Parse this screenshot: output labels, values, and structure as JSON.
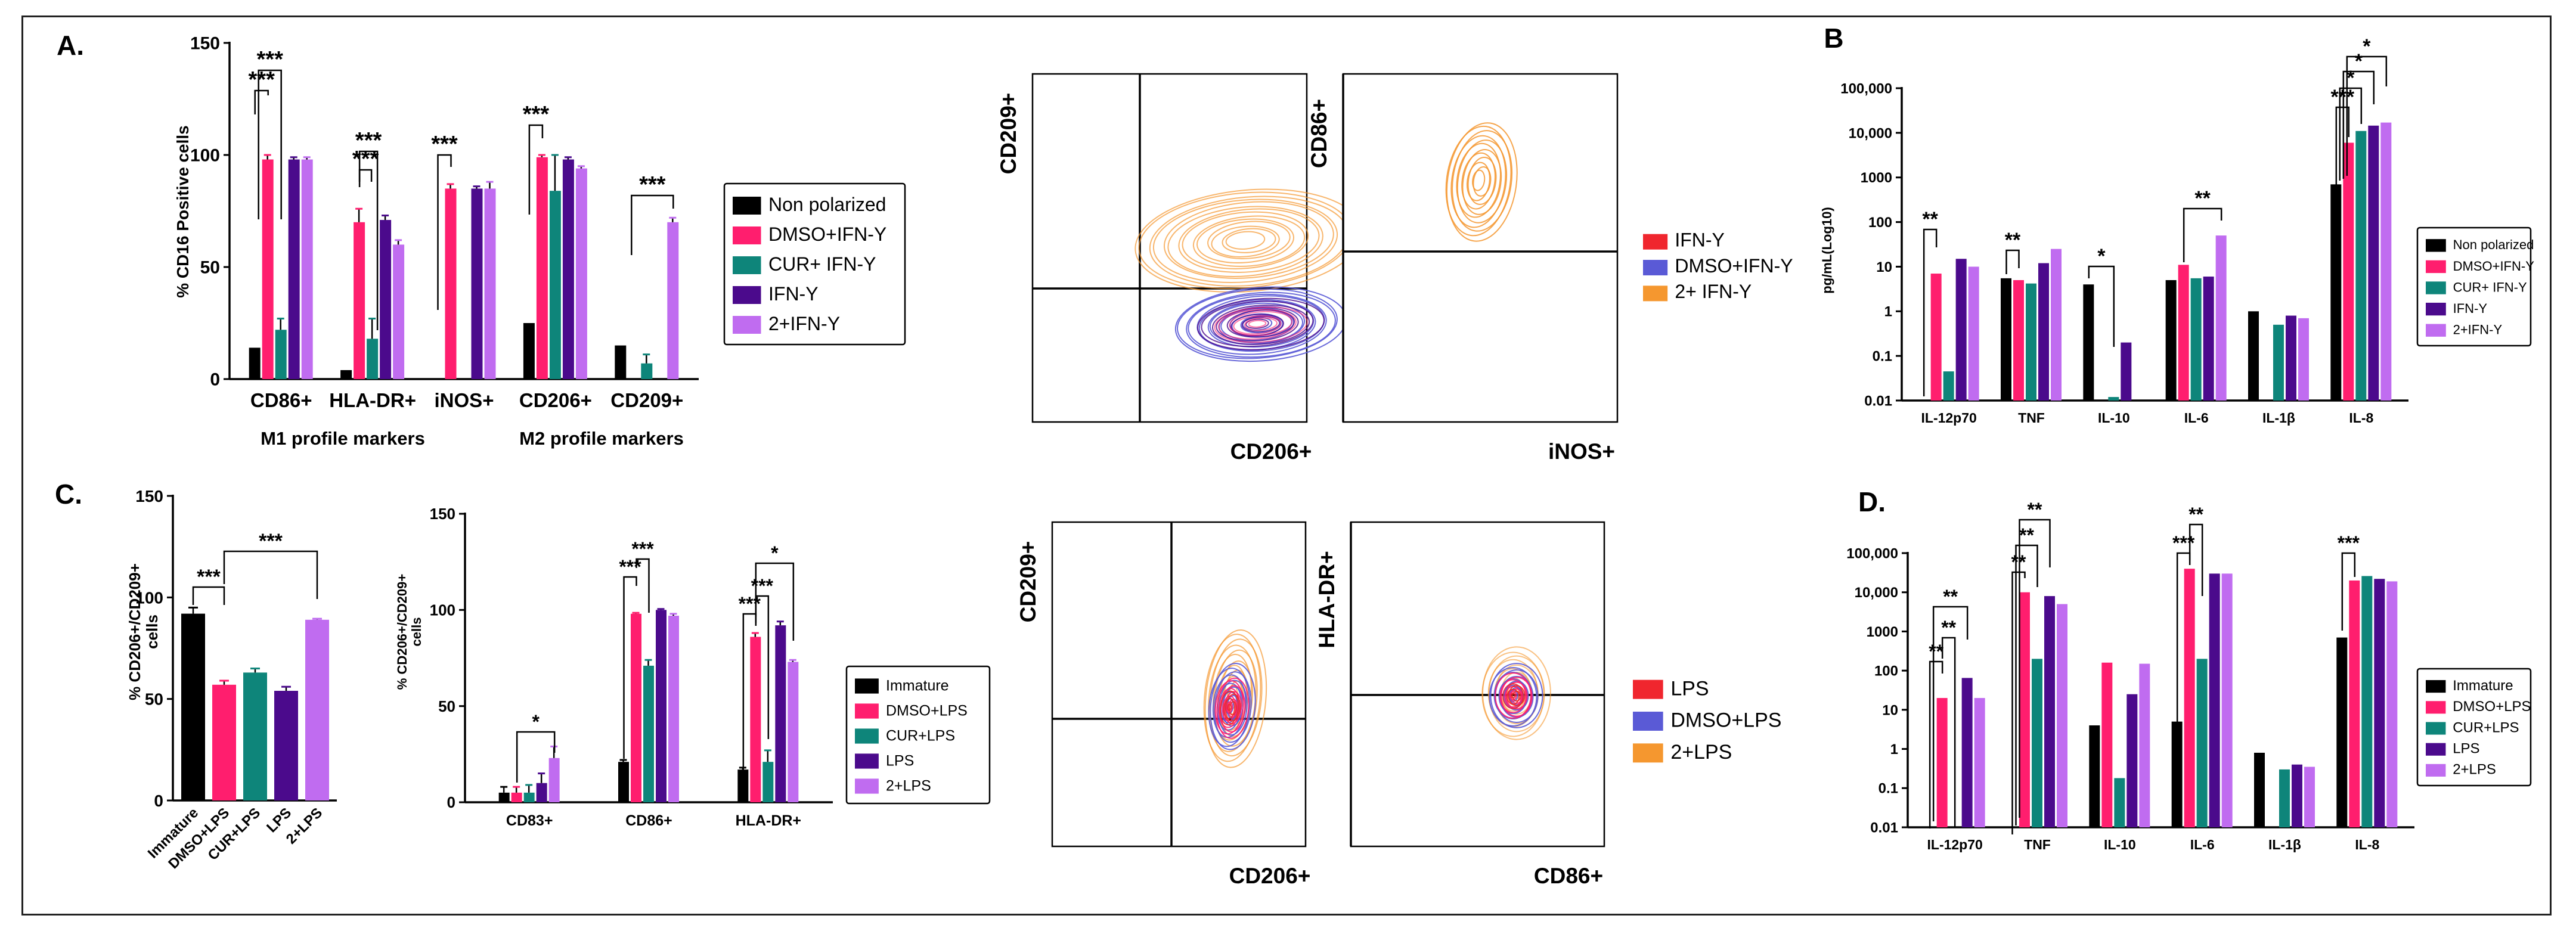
{
  "colors": {
    "black": "#000000",
    "pink": "#ff1e6e",
    "teal": "#0e857a",
    "purple": "#4b0a8c",
    "lilac": "#c06cf0",
    "red": "#f0262e",
    "blue": "#5a5ad6",
    "orange": "#f5972f",
    "axis": "#000000"
  },
  "panels": {
    "A": {
      "letter": "A.",
      "m1_label": "M1 profile markers",
      "m2_label": "M2 profile markers"
    },
    "B": {
      "letter": "B"
    },
    "C": {
      "letter": "C."
    },
    "D": {
      "letter": "D."
    }
  },
  "flow": {
    "A1": {
      "ylabel": "CD209+",
      "xlabel": "CD206+"
    },
    "A2": {
      "ylabel": "CD86+",
      "xlabel": "iNOS+"
    },
    "A_legend": [
      "IFN-Y",
      "DMSO+IFN-Y",
      "2+ IFN-Y"
    ],
    "C1": {
      "ylabel": "CD209+",
      "xlabel": "CD206+"
    },
    "C2": {
      "ylabel": "HLA-DR+",
      "xlabel": "CD86+"
    },
    "C_legend": [
      "LPS",
      "DMSO+LPS",
      "2+LPS"
    ]
  },
  "chart_data": [
    {
      "id": "A-bar",
      "type": "bar",
      "ylabel": "% CD16 Positive cells",
      "ylim": [
        0,
        150
      ],
      "yticks": [
        "0",
        "50",
        "100",
        "150"
      ],
      "categories": [
        "CD86+",
        "HLA-DR+",
        "iNOS+",
        "CD206+",
        "CD209+"
      ],
      "series": [
        {
          "name": "Non polarized",
          "values": [
            14,
            4,
            0,
            25,
            15
          ]
        },
        {
          "name": "DMSO+IFN-Y",
          "values": [
            98,
            70,
            85,
            99,
            0
          ]
        },
        {
          "name": "CUR+ IFN-Y",
          "values": [
            22,
            18,
            0,
            84,
            7
          ]
        },
        {
          "name": "IFN-Y",
          "values": [
            98,
            71,
            85,
            98,
            0
          ]
        },
        {
          "name": "2+IFN-Y",
          "values": [
            98,
            60,
            85,
            94,
            70
          ]
        }
      ],
      "errors": [
        [
          0,
          0,
          0,
          0,
          0
        ],
        [
          2,
          6,
          2,
          1,
          0
        ],
        [
          5,
          9,
          0,
          16,
          4
        ],
        [
          1,
          2,
          1,
          1,
          0
        ],
        [
          1,
          2,
          3,
          1,
          2
        ]
      ],
      "significance": [
        "***",
        "***",
        "***",
        "***",
        "***",
        "***",
        "***"
      ]
    },
    {
      "id": "B-bar",
      "type": "bar",
      "scale": "log",
      "ylabel": "pg/mL(Log10)",
      "ylim": [
        0.01,
        100000
      ],
      "yticks": [
        "0.01",
        "0.1",
        "1",
        "10",
        "100",
        "1000",
        "10,000",
        "100,000"
      ],
      "categories": [
        "IL-12p70",
        "TNF",
        "IL-10",
        "IL-6",
        "IL-1β",
        "IL-8"
      ],
      "series": [
        {
          "name": "Non polarized",
          "values": [
            0.01,
            5.5,
            4,
            5,
            1,
            700
          ]
        },
        {
          "name": "DMSO+IFN-Y",
          "values": [
            7,
            5,
            0.01,
            11,
            0.01,
            6000
          ]
        },
        {
          "name": "CUR+ IFN-Y",
          "values": [
            0.045,
            4.2,
            0.012,
            5.5,
            0.5,
            11000
          ]
        },
        {
          "name": "IFN-Y",
          "values": [
            15,
            12,
            0.2,
            6,
            0.8,
            14500
          ]
        },
        {
          "name": "2+IFN-Y",
          "values": [
            10,
            25,
            0.01,
            50,
            0.7,
            17000
          ]
        }
      ],
      "significance": [
        "**",
        "**",
        "*",
        "**",
        "***",
        "*",
        "*",
        "*"
      ]
    },
    {
      "id": "C-bar1",
      "type": "bar",
      "ylabel": "% CD206+/CD209+ cells",
      "ylim": [
        0,
        150
      ],
      "yticks": [
        "0",
        "50",
        "100",
        "150"
      ],
      "categories": [
        "Immature",
        "DMSO+LPS",
        "CUR+LPS",
        "LPS",
        "2+LPS"
      ],
      "values": [
        92,
        57,
        63,
        54,
        89
      ],
      "errors": [
        3,
        2,
        2,
        2,
        0.5
      ],
      "significance": [
        "***",
        "***"
      ]
    },
    {
      "id": "C-bar2",
      "type": "bar",
      "ylabel": "% CD206+/CD209+ cells",
      "ylim": [
        0,
        150
      ],
      "yticks": [
        "0",
        "50",
        "100",
        "150"
      ],
      "categories": [
        "CD83+",
        "CD86+",
        "HLA-DR+"
      ],
      "series": [
        {
          "name": "Immature",
          "values": [
            5,
            21,
            17
          ]
        },
        {
          "name": "DMSO+LPS",
          "values": [
            5,
            98,
            86
          ]
        },
        {
          "name": "CUR+LPS",
          "values": [
            5,
            71,
            21
          ]
        },
        {
          "name": "LPS",
          "values": [
            10,
            100,
            92
          ]
        },
        {
          "name": "2+LPS",
          "values": [
            23,
            97,
            73
          ]
        }
      ],
      "errors": [
        [
          3,
          1,
          1
        ],
        [
          3,
          0.5,
          2
        ],
        [
          4,
          3,
          6
        ],
        [
          5,
          0.5,
          2
        ],
        [
          6,
          1,
          1
        ]
      ],
      "significance": [
        "*",
        "***",
        "***",
        "***",
        "***",
        "*"
      ]
    },
    {
      "id": "D-bar",
      "type": "bar",
      "scale": "log",
      "ylim": [
        0.01,
        100000
      ],
      "yticks": [
        "0.01",
        "0.1",
        "1",
        "10",
        "100",
        "1000",
        "10,000",
        "100,000"
      ],
      "categories": [
        "IL-12p70",
        "TNF",
        "IL-10",
        "IL-6",
        "IL-1β",
        "IL-8"
      ],
      "series": [
        {
          "name": "Immature",
          "values": [
            0.01,
            0.01,
            4,
            5,
            0.8,
            700
          ]
        },
        {
          "name": "DMSO+LPS",
          "values": [
            20,
            10000,
            160,
            40000,
            0.01,
            20000
          ]
        },
        {
          "name": "CUR+LPS",
          "values": [
            0.01,
            200,
            0.18,
            200,
            0.3,
            26000
          ]
        },
        {
          "name": "LPS",
          "values": [
            65,
            8000,
            25,
            30000,
            0.4,
            22000
          ]
        },
        {
          "name": "2+LPS",
          "values": [
            20,
            5000,
            150,
            30000,
            0.35,
            19000
          ]
        }
      ],
      "significance": [
        "**",
        "**",
        "**",
        "**",
        "**",
        "**",
        "***",
        "**",
        "***"
      ]
    }
  ]
}
